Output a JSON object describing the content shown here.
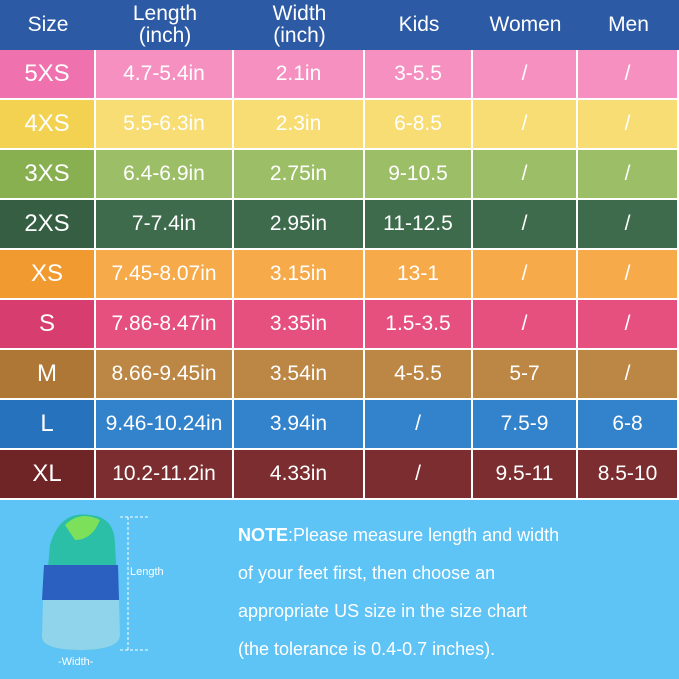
{
  "header": {
    "columns": [
      [
        "Size"
      ],
      [
        "Length",
        "(inch)"
      ],
      [
        "Width",
        "(inch)"
      ],
      [
        "Kids"
      ],
      [
        "Women"
      ],
      [
        "Men"
      ]
    ]
  },
  "table": {
    "rows": [
      [
        "5XS",
        "4.7-5.4in",
        "2.1in",
        "3-5.5",
        "/",
        "/"
      ],
      [
        "4XS",
        "5.5-6.3in",
        "2.3in",
        "6-8.5",
        "/",
        "/"
      ],
      [
        "3XS",
        "6.4-6.9in",
        "2.75in",
        "9-10.5",
        "/",
        "/"
      ],
      [
        "2XS",
        "7-7.4in",
        "2.95in",
        "11-12.5",
        "/",
        "/"
      ],
      [
        "XS",
        "7.45-8.07in",
        "3.15in",
        "13-1",
        "/",
        "/"
      ],
      [
        "S",
        "7.86-8.47in",
        "3.35in",
        "1.5-3.5",
        "/",
        "/"
      ],
      [
        "M",
        "8.66-9.45in",
        "3.54in",
        "4-5.5",
        "5-7",
        "/"
      ],
      [
        "L",
        "9.46-10.24in",
        "3.94in",
        "/",
        "7.5-9",
        "6-8"
      ],
      [
        "XL",
        "10.2-11.2in",
        "4.33in",
        "/",
        "9.5-11",
        "8.5-10"
      ]
    ]
  },
  "diagram": {
    "length_label": "Length",
    "width_label": "-Width-"
  },
  "note": {
    "label": "NOTE",
    "lines": [
      ":Please measure length and width",
      "of your feet first, then choose an",
      "appropriate US size in the size chart",
      "(the tolerance is 0.4-0.7 inches)."
    ]
  }
}
